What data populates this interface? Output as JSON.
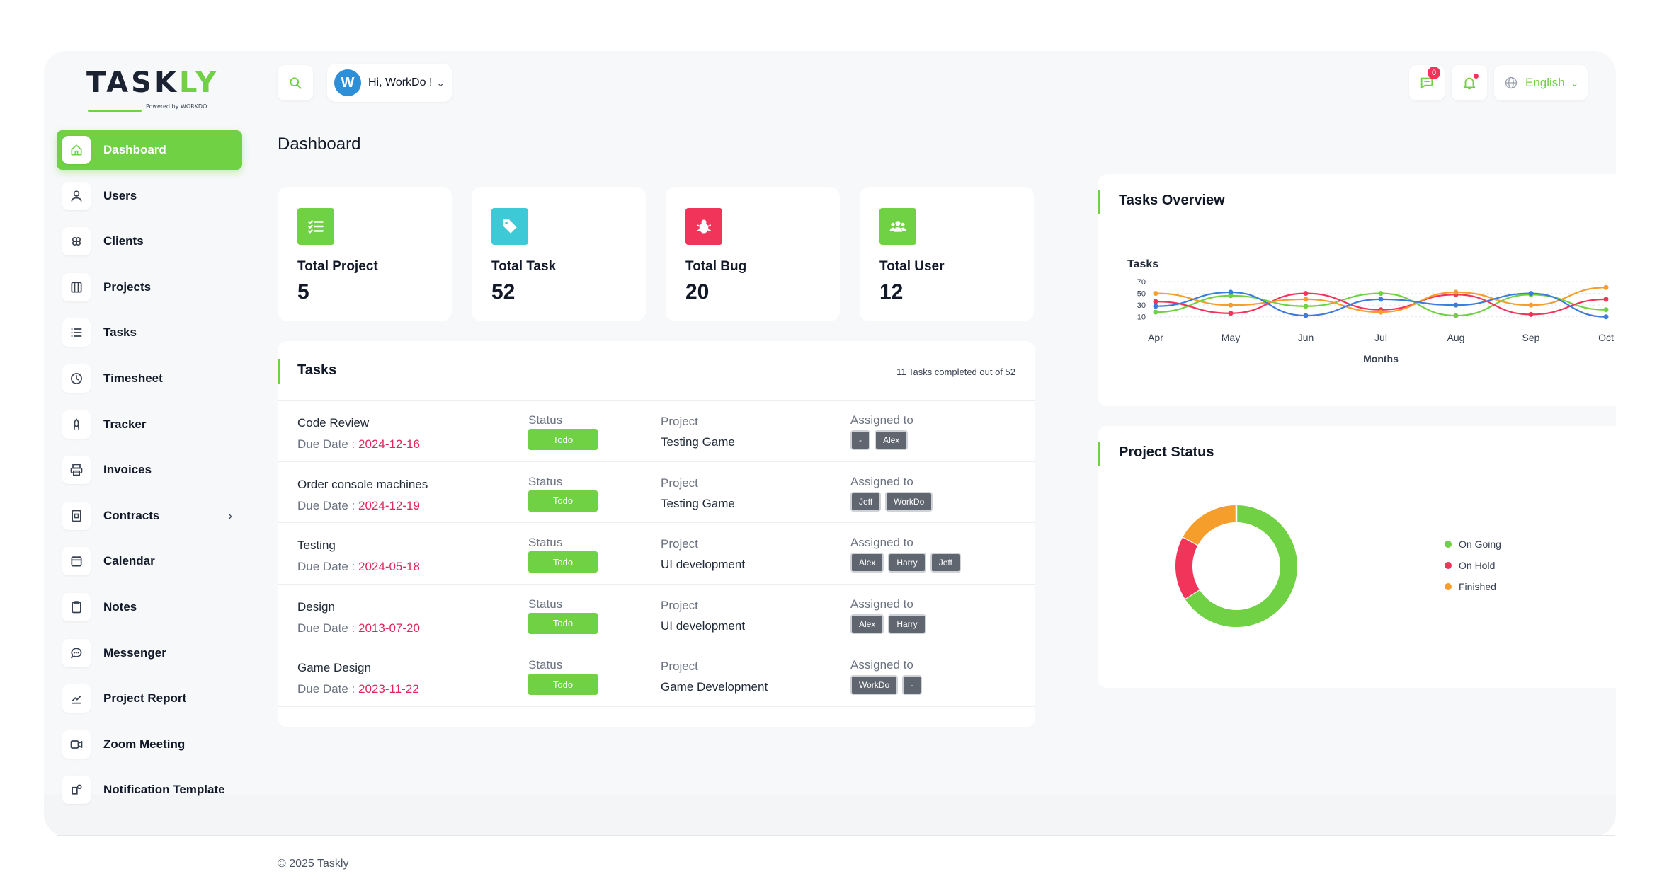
{
  "brand": {
    "logo_main": "TASK",
    "logo_accent": "LY",
    "logo_sub": "Powered by WORKDO"
  },
  "sidebar": {
    "items": [
      {
        "label": "Dashboard",
        "icon": "home-icon",
        "active": true
      },
      {
        "label": "Users",
        "icon": "user-icon"
      },
      {
        "label": "Clients",
        "icon": "clients-icon"
      },
      {
        "label": "Projects",
        "icon": "projects-icon"
      },
      {
        "label": "Tasks",
        "icon": "list-icon"
      },
      {
        "label": "Timesheet",
        "icon": "clock-icon"
      },
      {
        "label": "Tracker",
        "icon": "tracker-icon"
      },
      {
        "label": "Invoices",
        "icon": "printer-icon"
      },
      {
        "label": "Contracts",
        "icon": "contract-icon",
        "chevron": "›"
      },
      {
        "label": "Calendar",
        "icon": "calendar-icon"
      },
      {
        "label": "Notes",
        "icon": "clipboard-icon"
      },
      {
        "label": "Messenger",
        "icon": "chat-icon"
      },
      {
        "label": "Project Report",
        "icon": "chart-icon"
      },
      {
        "label": "Zoom Meeting",
        "icon": "video-icon"
      },
      {
        "label": "Notification Template",
        "icon": "notification-icon"
      }
    ]
  },
  "header": {
    "avatar_letter": "W",
    "greeting": "Hi, WorkDo !",
    "message_count": "0",
    "language": "English"
  },
  "page": {
    "title": "Dashboard"
  },
  "stats": [
    {
      "label": "Total Project",
      "value": "5",
      "color": "#6fd143",
      "icon": "checklist-icon"
    },
    {
      "label": "Total Task",
      "value": "52",
      "color": "#3ec9d6",
      "icon": "tag-icon"
    },
    {
      "label": "Total Bug",
      "value": "20",
      "color": "#f0345a",
      "icon": "bug-icon"
    },
    {
      "label": "Total User",
      "value": "12",
      "color": "#6fd143",
      "icon": "users-icon"
    }
  ],
  "tasks": {
    "title": "Tasks",
    "summary": "11 Tasks completed out of 52",
    "labels": {
      "status": "Status",
      "project": "Project",
      "assigned": "Assigned to",
      "due": "Due Date : "
    },
    "rows": [
      {
        "name": "Code Review",
        "due": "2024-12-16",
        "status": "Todo",
        "project": "Testing Game",
        "assignees": [
          "-",
          "Alex"
        ]
      },
      {
        "name": "Order console machines",
        "due": "2024-12-19",
        "status": "Todo",
        "project": "Testing Game",
        "assignees": [
          "Jeff",
          "WorkDo"
        ]
      },
      {
        "name": "Testing",
        "due": "2024-05-18",
        "status": "Todo",
        "project": "UI development",
        "assignees": [
          "Alex",
          "Harry",
          "Jeff"
        ]
      },
      {
        "name": "Design",
        "due": "2013-07-20",
        "status": "Todo",
        "project": "UI development",
        "assignees": [
          "Alex",
          "Harry"
        ]
      },
      {
        "name": "Game Design",
        "due": "2023-11-22",
        "status": "Todo",
        "project": "Game Development",
        "assignees": [
          "WorkDo",
          "-"
        ]
      }
    ]
  },
  "overview": {
    "title": "Tasks Overview",
    "chart_data": {
      "type": "line",
      "title": "Tasks",
      "xlabel": "Months",
      "ylabel": "",
      "categories": [
        "Apr",
        "May",
        "Jun",
        "Jul",
        "Aug",
        "Sep",
        "Oct"
      ],
      "yticks": [
        70,
        50,
        30,
        10
      ],
      "ylim": [
        0,
        70
      ],
      "grid": true,
      "series": [
        {
          "color": "#6fd143",
          "values": [
            18,
            46,
            28,
            50,
            12,
            48,
            22
          ]
        },
        {
          "color": "#f0345a",
          "values": [
            36,
            16,
            50,
            22,
            48,
            14,
            40
          ]
        },
        {
          "color": "#f59e2b",
          "values": [
            50,
            30,
            40,
            18,
            52,
            30,
            60
          ]
        },
        {
          "color": "#3b7ddd",
          "values": [
            28,
            52,
            12,
            40,
            30,
            50,
            10
          ]
        }
      ]
    }
  },
  "project_status": {
    "title": "Project Status",
    "chart_data": {
      "type": "pie",
      "categories": [
        "On Going",
        "On Hold",
        "Finished"
      ],
      "values": [
        66,
        17,
        17
      ],
      "colors": [
        "#6fd143",
        "#f0345a",
        "#f59e2b"
      ]
    }
  },
  "footer": {
    "text": "© 2025 Taskly"
  }
}
